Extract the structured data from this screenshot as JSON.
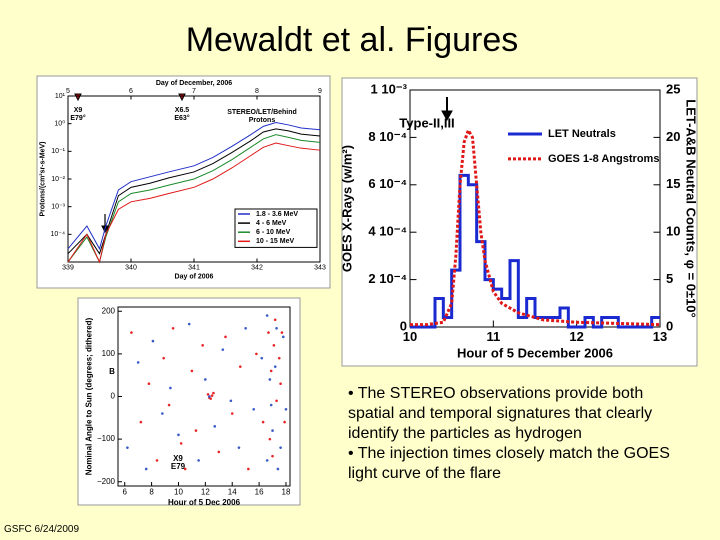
{
  "title": "Mewaldt et al. Figures",
  "bullets": [
    "• The STEREO observations provide both spatial and temporal signatures that clearly identify the particles as hydrogen",
    "• The injection times closely match the GOES light curve of the flare"
  ],
  "footer": "GSFC 6/24/2009",
  "chart_data": [
    {
      "type": "line",
      "ylog": true,
      "x2label": "Day of December, 2006",
      "xlabel": "Day of 2006",
      "ylabel": "Protons/(cm²sr-s-MeV)",
      "annotations": [
        "X9",
        "E79°",
        "X6.5",
        "E63°",
        "STEREO/LET/Behind",
        "Protons"
      ],
      "legend": "lower right",
      "xlim": [
        339,
        343
      ],
      "xticks": [
        339,
        340,
        341,
        342,
        343
      ],
      "x2lim": [
        5,
        9
      ],
      "x2ticks": [
        5,
        6,
        7,
        8,
        9
      ],
      "ylim": [
        1e-05,
        10
      ],
      "yticks": [
        {
          "value": 10,
          "label": "10¹"
        },
        {
          "value": 1,
          "label": "10⁰"
        },
        {
          "value": 0.1,
          "label": "10⁻¹"
        },
        {
          "value": 0.01,
          "label": "10⁻²"
        },
        {
          "value": 0.001,
          "label": "10⁻³"
        },
        {
          "value": 0.0001,
          "label": "10⁻⁴"
        }
      ],
      "x": [
        339,
        339.3,
        339.5,
        339.6,
        339.8,
        340,
        340.3,
        340.6,
        341,
        341.3,
        341.6,
        341.9,
        342.1,
        342.3,
        342.5,
        342.7,
        343
      ],
      "series": [
        {
          "name": "1.8 - 3.6 MeV",
          "color": "#2030c8",
          "values": [
            3e-05,
            0.0002,
            3e-05,
            0.0002,
            0.004,
            0.008,
            0.012,
            0.018,
            0.03,
            0.06,
            0.15,
            0.4,
            0.8,
            1.1,
            0.9,
            0.7,
            0.6
          ]
        },
        {
          "name": "4 - 6 MeV",
          "color": "#000000",
          "values": [
            2e-05,
            0.0001,
            2e-05,
            0.0001,
            0.0025,
            0.005,
            0.007,
            0.011,
            0.018,
            0.036,
            0.09,
            0.24,
            0.5,
            0.65,
            0.55,
            0.42,
            0.36
          ]
        },
        {
          "name": "6 - 10 MeV",
          "color": "#1a8a2a",
          "values": [
            1e-05,
            8e-05,
            1e-05,
            8e-05,
            0.0015,
            0.003,
            0.004,
            0.006,
            0.01,
            0.02,
            0.05,
            0.14,
            0.28,
            0.4,
            0.32,
            0.25,
            0.21
          ]
        },
        {
          "name": "10 - 15 MeV",
          "color": "#e01818",
          "values": [
            1e-05,
            0.0001,
            1e-05,
            0.0001,
            0.0008,
            0.0015,
            0.002,
            0.003,
            0.005,
            0.01,
            0.025,
            0.07,
            0.14,
            0.2,
            0.16,
            0.13,
            0.11
          ]
        }
      ]
    },
    {
      "type": "line",
      "xlabel": "Hour of 5 December 2006",
      "ylabel": "GOES X-Rays (w/m²)",
      "y2label": "LET-A&B Neutral Counts, φ = 0±10°",
      "annotations": [
        "Type-II,III"
      ],
      "legend": "upper right",
      "xlim": [
        10,
        13
      ],
      "xticks": [
        10,
        11,
        12,
        13
      ],
      "ylim": [
        0,
        0.001
      ],
      "yticks": [
        0,
        {
          "value": 0.0002,
          "label": "2 10⁻⁴"
        },
        {
          "value": 0.0004,
          "label": "4 10⁻⁴"
        },
        {
          "value": 0.0006,
          "label": "6 10⁻⁴"
        },
        {
          "value": 0.0008,
          "label": "8 10⁻⁴"
        },
        {
          "value": 0.001,
          "label": "1 10⁻³"
        }
      ],
      "y2lim": [
        0,
        25
      ],
      "y2ticks": [
        0,
        5,
        10,
        15,
        20,
        25
      ],
      "series": [
        {
          "name": "LET Neutrals",
          "color": "#1a2ad0",
          "axis": "y2",
          "drawstyle": "steps",
          "x": [
            10,
            10.1,
            10.2,
            10.3,
            10.4,
            10.5,
            10.6,
            10.7,
            10.8,
            10.9,
            11,
            11.1,
            11.2,
            11.3,
            11.4,
            11.5,
            11.6,
            11.7,
            11.8,
            11.9,
            12,
            12.1,
            12.2,
            12.3,
            12.4,
            12.5,
            12.6,
            12.7,
            12.8,
            12.9
          ],
          "values": [
            0,
            0,
            0,
            3,
            1,
            6,
            16,
            15,
            9,
            5,
            4,
            3,
            7,
            1,
            3,
            1,
            1,
            1,
            2,
            0,
            0,
            1,
            0,
            1,
            1,
            0,
            0,
            0,
            0,
            1
          ]
        },
        {
          "name": "GOES 1-8 Angstroms",
          "color": "#e01818",
          "linestyle": "dotted",
          "x": [
            10,
            10.2,
            10.4,
            10.5,
            10.55,
            10.6,
            10.65,
            10.7,
            10.75,
            10.8,
            10.85,
            10.9,
            11,
            11.1,
            11.3,
            11.6,
            12,
            12.5,
            13
          ],
          "values": [
            1e-05,
            1e-05,
            2e-05,
            0.0001,
            0.0003,
            0.0006,
            0.00078,
            0.00083,
            0.0008,
            0.0006,
            0.0004,
            0.00028,
            0.00015,
            0.0001,
            6e-05,
            3e-05,
            2e-05,
            1.5e-05,
            1e-05
          ]
        }
      ]
    },
    {
      "type": "scatter",
      "xlabel": "Hour of 5 Dec 2006",
      "ylabel": "Nominal Angle to Sun (degrees; dithered)",
      "annotations": [
        "B",
        "X9",
        "E79"
      ],
      "xlim": [
        5.5,
        18.3
      ],
      "xticks": [
        6,
        8,
        10,
        12,
        14,
        16,
        18
      ],
      "ylim": [
        -210,
        210
      ],
      "yticks": [
        200,
        100,
        0,
        {
          "value": -100,
          "label": "−100"
        },
        {
          "value": -200,
          "label": "−200"
        }
      ],
      "series": [
        {
          "color": "#e8262a",
          "x": [
            6.5,
            7.2,
            7.8,
            8.4,
            8.9,
            9.3,
            9.6,
            10.2,
            10.5,
            11,
            11.3,
            11.8,
            12.2,
            12.4,
            12.5,
            12.3,
            12.6,
            13,
            13.5,
            14,
            14.6,
            15.2,
            15.8,
            16.3,
            16.7,
            16.9,
            17.1,
            17.3,
            17.5,
            17.7,
            17.9,
            17.2,
            16.8,
            17.6,
            17
          ],
          "values": [
            150,
            -60,
            30,
            -150,
            90,
            -20,
            160,
            -110,
            -170,
            60,
            -80,
            120,
            5,
            -5,
            2,
            -3,
            8,
            -130,
            140,
            -40,
            70,
            -170,
            100,
            -60,
            150,
            60,
            120,
            -10,
            90,
            150,
            -60,
            180,
            -100,
            30,
            -140
          ]
        },
        {
          "color": "#3a5bc7",
          "x": [
            6.2,
            7,
            7.6,
            8.1,
            8.8,
            9.4,
            10,
            10.8,
            11.5,
            12,
            12.3,
            12.7,
            13.3,
            13.9,
            14.5,
            15,
            15.6,
            16.2,
            16.6,
            16.6,
            16.8,
            17,
            17.2,
            17.4,
            17.6,
            17.8,
            18,
            16.9,
            17.3
          ],
          "values": [
            -120,
            80,
            -170,
            130,
            -40,
            20,
            -90,
            170,
            -150,
            40,
            0,
            -70,
            110,
            -10,
            -120,
            160,
            -30,
            90,
            -150,
            190,
            40,
            -80,
            70,
            -170,
            -120,
            140,
            -30,
            -20,
            160
          ]
        }
      ]
    }
  ]
}
